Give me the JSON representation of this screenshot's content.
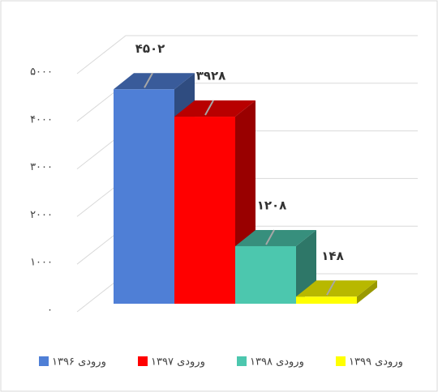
{
  "chart_data": {
    "type": "bar3d",
    "categories": [
      null
    ],
    "series": [
      {
        "name": "ورودی ۱۳۹۶",
        "color": "#4f7fd6",
        "values": [
          4502
        ],
        "value_labels": [
          "۴۵۰۲"
        ]
      },
      {
        "name": "ورودی ۱۳۹۷",
        "color": "#ff0000",
        "values": [
          3928
        ],
        "value_labels": [
          "۳۹۲۸"
        ]
      },
      {
        "name": "ورودی ۱۳۹۸",
        "color": "#4cc7ae",
        "values": [
          1208
        ],
        "value_labels": [
          "۱۲۰۸"
        ]
      },
      {
        "name": "ورودی ۱۳۹۹",
        "color": "#ffff00",
        "values": [
          148
        ],
        "value_labels": [
          "۱۴۸"
        ]
      }
    ],
    "ylim": [
      0,
      5000
    ],
    "yticks": [
      {
        "value": 0,
        "label": "۰"
      },
      {
        "value": 1000,
        "label": "۱۰۰۰"
      },
      {
        "value": 2000,
        "label": "۲۰۰۰"
      },
      {
        "value": 3000,
        "label": "۳۰۰۰"
      },
      {
        "value": 4000,
        "label": "۴۰۰۰"
      },
      {
        "value": 5000,
        "label": "۵۰۰۰"
      }
    ],
    "grid": true,
    "legend": "bottom"
  }
}
